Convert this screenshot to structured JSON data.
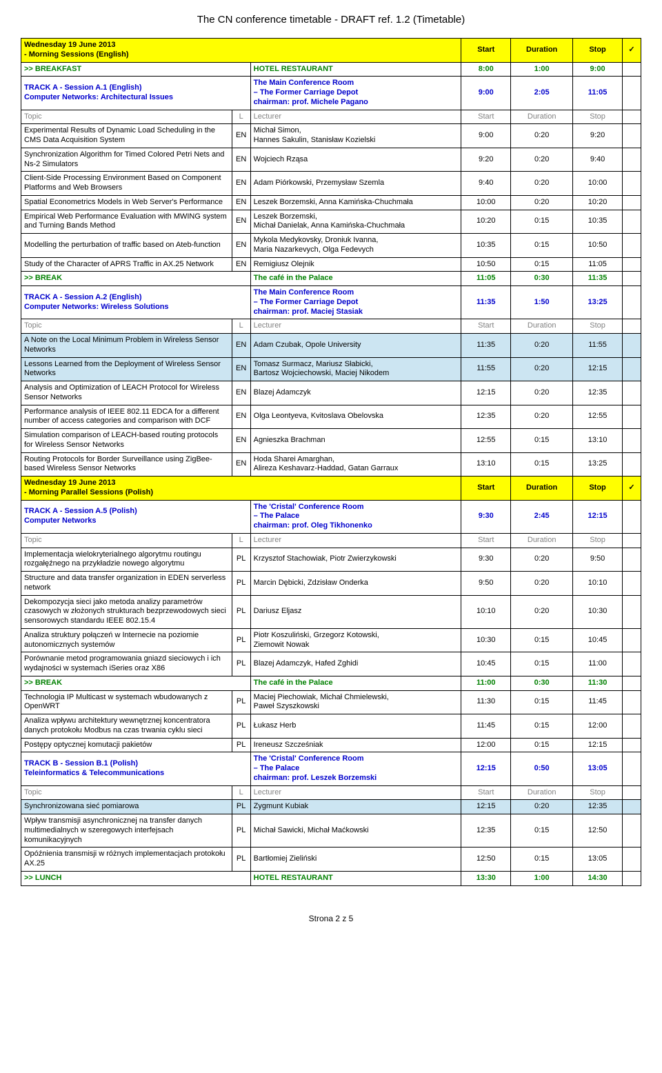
{
  "doc": {
    "title": "The CN conference timetable - DRAFT ref. 1.2 (Timetable)",
    "footer": "Strona 2 z 5"
  },
  "headers": {
    "start": "Start",
    "duration": "Duration",
    "stop": "Stop",
    "topic": "Topic",
    "l": "L",
    "lecturer": "Lecturer"
  },
  "day": {
    "eng": {
      "line1": "Wednesday 19 June 2013",
      "line2": " - Morning Sessions (English)"
    },
    "pol": {
      "line1": "Wednesday 19 June 2013",
      "line2": " - Morning Parallel Sessions (Polish)"
    }
  },
  "break": {
    "breakfast": {
      "t": ">> BREAKFAST",
      "loc": "HOTEL RESTAURANT",
      "s": "8:00",
      "d": "1:00",
      "e": "9:00"
    },
    "b1": {
      "t": ">> BREAK",
      "loc": "The café in the Palace",
      "s": "11:05",
      "d": "0:30",
      "e": "11:35"
    },
    "b2": {
      "t": ">> BREAK",
      "loc": "The café in the Palace",
      "s": "11:00",
      "d": "0:30",
      "e": "11:30"
    },
    "lunch": {
      "t": ">> LUNCH",
      "loc": "HOTEL RESTAURANT",
      "s": "13:30",
      "d": "1:00",
      "e": "14:30"
    }
  },
  "sA1": {
    "title": "TRACK A - Session A.1 (English)",
    "subtitle": "Computer Networks: Architectural Issues",
    "room1": "The Main Conference Room",
    "room2": "– The Former Carriage Depot",
    "chair": "chairman:  prof. Michele Pagano",
    "s": "9:00",
    "d": "2:05",
    "e": "11:05",
    "r": [
      {
        "t": "Experimental Results of Dynamic Load Scheduling in the CMS Data Acquisition System",
        "l": "EN",
        "p": "Michał Simon,\nHannes Sakulin, Stanisław Kozielski",
        "s": "9:00",
        "d": "0:20",
        "e": "9:20"
      },
      {
        "t": "Synchronization Algorithm for Timed Colored Petri Nets and Ns-2 Simulators",
        "l": "EN",
        "p": "Wojciech Rząsa",
        "s": "9:20",
        "d": "0:20",
        "e": "9:40"
      },
      {
        "t": "Client-Side Processing Environment Based on Component Platforms and Web Browsers",
        "l": "EN",
        "p": "Adam Piórkowski, Przemysław Szemla",
        "s": "9:40",
        "d": "0:20",
        "e": "10:00"
      },
      {
        "t": "Spatial Econometrics Models in Web Server's Performance",
        "l": "EN",
        "p": "Leszek Borzemski, Anna Kamińska-Chuchmała",
        "s": "10:00",
        "d": "0:20",
        "e": "10:20"
      },
      {
        "t": "Empirical Web Performance Evaluation with MWING system and Turning Bands Method",
        "l": "EN",
        "p": "Leszek Borzemski,\nMichał Danielak, Anna Kamińska-Chuchmała",
        "s": "10:20",
        "d": "0:15",
        "e": "10:35"
      },
      {
        "t": "Modelling the perturbation of traffic based on Ateb-function",
        "l": "EN",
        "p": "Mykola Medykovsky, Droniuk Ivanna,\nMaria Nazarkevych, Olga Fedevych",
        "s": "10:35",
        "d": "0:15",
        "e": "10:50"
      },
      {
        "t": "Study of the Character of APRS Traffic in AX.25 Network",
        "l": "EN",
        "p": "Remigiusz Olejnik",
        "s": "10:50",
        "d": "0:15",
        "e": "11:05"
      }
    ]
  },
  "sA2": {
    "title": "TRACK A - Session A.2 (English)",
    "subtitle": "Computer Networks: Wireless Solutions",
    "room1": "The Main Conference Room",
    "room2": "– The Former Carriage Depot",
    "chair": "chairman:  prof. Maciej Stasiak",
    "s": "11:35",
    "d": "1:50",
    "e": "13:25",
    "r": [
      {
        "t": "A Note on the Local Minimum Problem in Wireless Sensor Networks",
        "l": "EN",
        "p": "Adam Czubak, Opole University",
        "s": "11:35",
        "d": "0:20",
        "e": "11:55",
        "hl": true
      },
      {
        "t": "Lessons Learned from the Deployment of Wireless Sensor Networks",
        "l": "EN",
        "p": "Tomasz Surmacz, Mariusz Słabicki,\nBartosz Wojciechowski, Maciej Nikodem",
        "s": "11:55",
        "d": "0:20",
        "e": "12:15",
        "hl": true
      },
      {
        "t": "Analysis and Optimization of LEACH Protocol for Wireless Sensor Networks",
        "l": "EN",
        "p": "Blazej Adamczyk",
        "s": "12:15",
        "d": "0:20",
        "e": "12:35"
      },
      {
        "t": "Performance analysis of IEEE 802.11 EDCA for a different number of access categories and comparison with DCF",
        "l": "EN",
        "p": "Olga Leontyeva, Kvitoslava Obelovska",
        "s": "12:35",
        "d": "0:20",
        "e": "12:55"
      },
      {
        "t": "Simulation comparison of LEACH-based routing protocols for Wireless Sensor Networks",
        "l": "EN",
        "p": "Agnieszka Brachman",
        "s": "12:55",
        "d": "0:15",
        "e": "13:10"
      },
      {
        "t": "Routing Protocols for Border Surveillance using ZigBee-based Wireless Sensor Networks",
        "l": "EN",
        "p": "Hoda Sharei Amarghan,\nAlireza Keshavarz-Haddad, Gatan Garraux",
        "s": "13:10",
        "d": "0:15",
        "e": "13:25"
      }
    ]
  },
  "sA5": {
    "title": "TRACK A - Session A.5 (Polish)",
    "subtitle": "Computer Networks",
    "room1": "The 'Cristal' Conference Room",
    "room2": "– The Palace",
    "chair": "chairman:  prof. Oleg Tikhonenko",
    "s": "9:30",
    "d": "2:45",
    "e": "12:15",
    "r1": [
      {
        "t": "Implementacja wielokryterialnego algorytmu routingu rozgałęźnego na przykładzie nowego algorytmu",
        "l": "PL",
        "p": "Krzysztof Stachowiak, Piotr Zwierzykowski",
        "s": "9:30",
        "d": "0:20",
        "e": "9:50"
      },
      {
        "t": "Structure and data transfer organization in EDEN serverless network",
        "l": "PL",
        "p": "Marcin Dębicki, Zdzisław Onderka",
        "s": "9:50",
        "d": "0:20",
        "e": "10:10"
      },
      {
        "t": "Dekompozycja sieci jako metoda analizy parametrów czasowych w złożonych strukturach bezprzewodowych sieci sensorowych standardu IEEE 802.15.4",
        "l": "PL",
        "p": "Dariusz Eljasz",
        "s": "10:10",
        "d": "0:20",
        "e": "10:30"
      },
      {
        "t": "Analiza struktury połączeń w Internecie na poziomie autonomicznych systemów",
        "l": "PL",
        "p": "Piotr Koszuliński, Grzegorz Kotowski,\nZiemowit Nowak",
        "s": "10:30",
        "d": "0:15",
        "e": "10:45"
      },
      {
        "t": "Porównanie metod programowania gniazd sieciowych i ich wydajności w systemach iSeries oraz X86",
        "l": "PL",
        "p": "Blazej Adamczyk, Hafed Zghidi",
        "s": "10:45",
        "d": "0:15",
        "e": "11:00"
      }
    ],
    "r2": [
      {
        "t": "Technologia IP Multicast w systemach wbudowanych z OpenWRT",
        "l": "PL",
        "p": "Maciej Piechowiak, Michał Chmielewski,\nPaweł Szyszkowski",
        "s": "11:30",
        "d": "0:15",
        "e": "11:45"
      },
      {
        "t": "Analiza wpływu architektury wewnętrznej koncentratora danych protokołu Modbus na czas trwania cyklu sieci",
        "l": "PL",
        "p": "Łukasz Herb",
        "s": "11:45",
        "d": "0:15",
        "e": "12:00"
      },
      {
        "t": "Postępy optycznej komutacji pakietów",
        "l": "PL",
        "p": "Ireneusz Szcześniak",
        "s": "12:00",
        "d": "0:15",
        "e": "12:15"
      }
    ]
  },
  "sB1": {
    "title": "TRACK B - Session B.1 (Polish)",
    "subtitle": "Teleinformatics & Telecommunications",
    "room1": "The 'Cristal' Conference Room",
    "room2": "– The Palace",
    "chair": "chairman:  prof. Leszek Borzemski",
    "s": "12:15",
    "d": "0:50",
    "e": "13:05",
    "r": [
      {
        "t": "Synchronizowana sieć pomiarowa",
        "l": "PL",
        "p": "Zygmunt Kubiak",
        "s": "12:15",
        "d": "0:20",
        "e": "12:35",
        "hl": true
      },
      {
        "t": "Wpływ transmisji asynchronicznej na transfer danych multimedialnych w szeregowych interfejsach komunikacyjnych",
        "l": "PL",
        "p": "Michał Sawicki, Michał Maćkowski",
        "s": "12:35",
        "d": "0:15",
        "e": "12:50"
      },
      {
        "t": "Opóźnienia transmisji w różnych implementacjach protokołu AX.25",
        "l": "PL",
        "p": "Bartłomiej Zieliński",
        "s": "12:50",
        "d": "0:15",
        "e": "13:05"
      }
    ]
  }
}
